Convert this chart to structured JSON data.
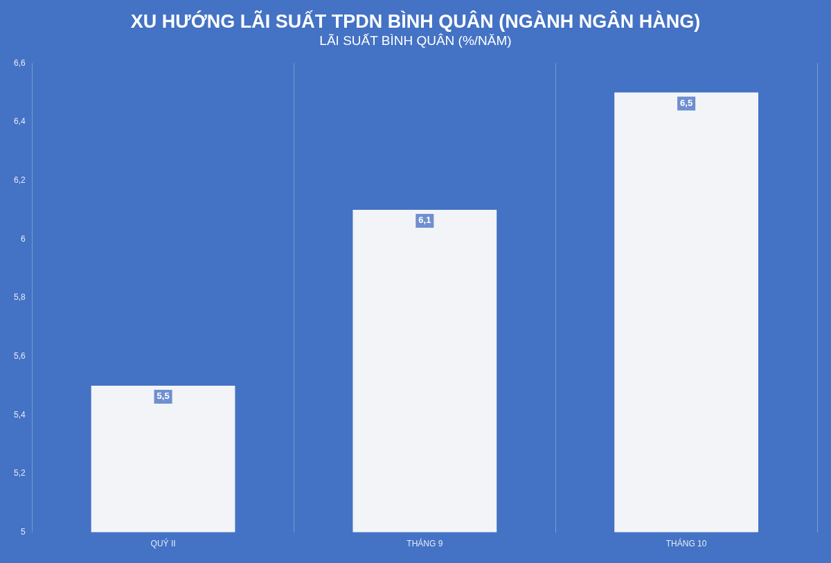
{
  "chart_data": {
    "type": "bar",
    "title": "XU HƯỚNG LÃI SUẤT TPDN BÌNH QUÂN (NGÀNH NGÂN HÀNG)",
    "subtitle": "LÃI SUẤT BÌNH QUÂN (%/NĂM)",
    "categories": [
      "QUÝ II",
      "THÁNG 9",
      "THÁNG 10"
    ],
    "values": [
      5.5,
      6.1,
      6.5
    ],
    "color": "#f2f4f8",
    "value_labels": [
      "5,5",
      "6,1",
      "6,5"
    ],
    "ylim": [
      5,
      6.6
    ],
    "yticks": [
      {
        "value": 5,
        "label": "5"
      },
      {
        "value": 5.2,
        "label": "5,2"
      },
      {
        "value": 5.4,
        "label": "5,4"
      },
      {
        "value": 5.6,
        "label": "5,6"
      },
      {
        "value": 5.8,
        "label": "5,8"
      },
      {
        "value": 6,
        "label": "6"
      },
      {
        "value": 6.2,
        "label": "6,2"
      },
      {
        "value": 6.4,
        "label": "6,4"
      },
      {
        "value": 6.6,
        "label": "6,6"
      }
    ],
    "grid": "x"
  }
}
